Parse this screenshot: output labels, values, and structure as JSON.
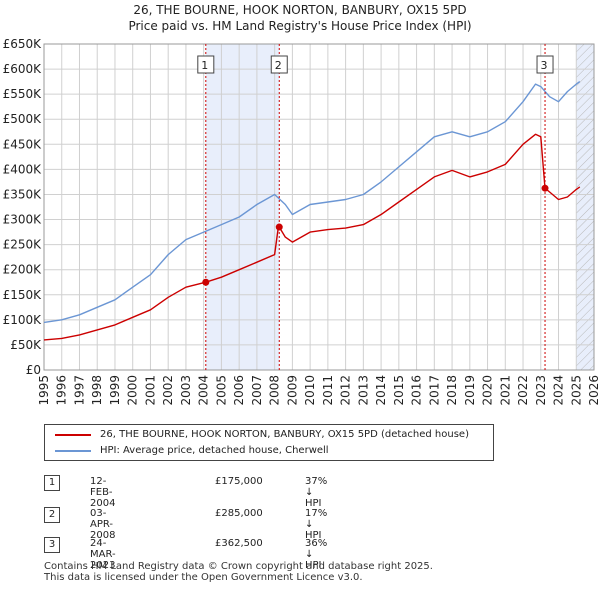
{
  "title": {
    "line1": "26, THE BOURNE, HOOK NORTON, BANBURY, OX15 5PD",
    "line2": "Price paid vs. HM Land Registry's House Price Index (HPI)"
  },
  "colors": {
    "property_line": "#cc0000",
    "hpi_line": "#6b96d4",
    "band": "#e8eefb",
    "grid": "#d0d0d0",
    "marker_line": "#cc0000"
  },
  "chart_data": {
    "type": "line",
    "xlim": [
      1995,
      2026
    ],
    "ylim": [
      0,
      650000
    ],
    "y_ticks": [
      0,
      50000,
      100000,
      150000,
      200000,
      250000,
      300000,
      350000,
      400000,
      450000,
      500000,
      550000,
      600000,
      650000
    ],
    "y_tick_labels": [
      "£0",
      "£50K",
      "£100K",
      "£150K",
      "£200K",
      "£250K",
      "£300K",
      "£350K",
      "£400K",
      "£450K",
      "£500K",
      "£550K",
      "£600K",
      "£650K"
    ],
    "x_tick_labels": [
      "1995",
      "1996",
      "1997",
      "1998",
      "1999",
      "2000",
      "2001",
      "2002",
      "2003",
      "2004",
      "2005",
      "2006",
      "2007",
      "2008",
      "2009",
      "2010",
      "2011",
      "2012",
      "2013",
      "2014",
      "2015",
      "2016",
      "2017",
      "2018",
      "2019",
      "2020",
      "2021",
      "2022",
      "2023",
      "2024",
      "2025",
      "2026"
    ],
    "shaded_ranges": [
      [
        2004.12,
        2008.26
      ],
      [
        2025.0,
        2026.0
      ]
    ],
    "hatched_range": [
      2025.0,
      2026.0
    ],
    "series": [
      {
        "name": "26, THE BOURNE, HOOK NORTON, BANBURY, OX15 5PD (detached house)",
        "color": "#cc0000",
        "points": [
          [
            1995.0,
            60000
          ],
          [
            1996.0,
            63000
          ],
          [
            1997.0,
            70000
          ],
          [
            1998.0,
            80000
          ],
          [
            1999.0,
            90000
          ],
          [
            2000.0,
            105000
          ],
          [
            2001.0,
            120000
          ],
          [
            2002.0,
            145000
          ],
          [
            2003.0,
            165000
          ],
          [
            2004.12,
            175000
          ],
          [
            2005.0,
            185000
          ],
          [
            2006.0,
            200000
          ],
          [
            2007.0,
            215000
          ],
          [
            2008.0,
            230000
          ],
          [
            2008.2,
            283000
          ],
          [
            2008.26,
            285000
          ],
          [
            2008.6,
            265000
          ],
          [
            2009.0,
            255000
          ],
          [
            2010.0,
            275000
          ],
          [
            2011.0,
            280000
          ],
          [
            2012.0,
            283000
          ],
          [
            2013.0,
            290000
          ],
          [
            2014.0,
            310000
          ],
          [
            2015.0,
            335000
          ],
          [
            2016.0,
            360000
          ],
          [
            2017.0,
            385000
          ],
          [
            2018.0,
            398000
          ],
          [
            2019.0,
            385000
          ],
          [
            2020.0,
            395000
          ],
          [
            2021.0,
            410000
          ],
          [
            2022.0,
            450000
          ],
          [
            2022.7,
            470000
          ],
          [
            2023.0,
            465000
          ],
          [
            2023.24,
            362500
          ],
          [
            2023.5,
            355000
          ],
          [
            2024.0,
            340000
          ],
          [
            2024.5,
            345000
          ],
          [
            2025.0,
            360000
          ],
          [
            2025.2,
            365000
          ]
        ]
      },
      {
        "name": "HPI: Average price, detached house, Cherwell",
        "color": "#6b96d4",
        "points": [
          [
            1995.0,
            95000
          ],
          [
            1996.0,
            100000
          ],
          [
            1997.0,
            110000
          ],
          [
            1998.0,
            125000
          ],
          [
            1999.0,
            140000
          ],
          [
            2000.0,
            165000
          ],
          [
            2001.0,
            190000
          ],
          [
            2002.0,
            230000
          ],
          [
            2003.0,
            260000
          ],
          [
            2004.0,
            275000
          ],
          [
            2005.0,
            290000
          ],
          [
            2006.0,
            305000
          ],
          [
            2007.0,
            330000
          ],
          [
            2008.0,
            350000
          ],
          [
            2008.6,
            330000
          ],
          [
            2009.0,
            310000
          ],
          [
            2010.0,
            330000
          ],
          [
            2011.0,
            335000
          ],
          [
            2012.0,
            340000
          ],
          [
            2013.0,
            350000
          ],
          [
            2014.0,
            375000
          ],
          [
            2015.0,
            405000
          ],
          [
            2016.0,
            435000
          ],
          [
            2017.0,
            465000
          ],
          [
            2018.0,
            475000
          ],
          [
            2019.0,
            465000
          ],
          [
            2020.0,
            475000
          ],
          [
            2021.0,
            495000
          ],
          [
            2022.0,
            535000
          ],
          [
            2022.7,
            570000
          ],
          [
            2023.0,
            565000
          ],
          [
            2023.5,
            545000
          ],
          [
            2024.0,
            535000
          ],
          [
            2024.5,
            555000
          ],
          [
            2025.0,
            570000
          ],
          [
            2025.2,
            575000
          ]
        ]
      }
    ],
    "sales": [
      {
        "label": "1",
        "x": 2004.12,
        "price": 175000
      },
      {
        "label": "2",
        "x": 2008.26,
        "price": 285000
      },
      {
        "label": "3",
        "x": 2023.24,
        "price": 362500
      }
    ]
  },
  "legend": {
    "property": "26, THE BOURNE, HOOK NORTON, BANBURY, OX15 5PD (detached house)",
    "hpi": "HPI: Average price, detached house, Cherwell"
  },
  "transactions": [
    {
      "num": "1",
      "date": "12-FEB-2004",
      "price": "£175,000",
      "hpi": "37% ↓ HPI"
    },
    {
      "num": "2",
      "date": "03-APR-2008",
      "price": "£285,000",
      "hpi": "17% ↓ HPI"
    },
    {
      "num": "3",
      "date": "24-MAR-2023",
      "price": "£362,500",
      "hpi": "36% ↓ HPI"
    }
  ],
  "footer": {
    "line1": "Contains HM Land Registry data © Crown copyright and database right 2025.",
    "line2": "This data is licensed under the Open Government Licence v3.0."
  }
}
